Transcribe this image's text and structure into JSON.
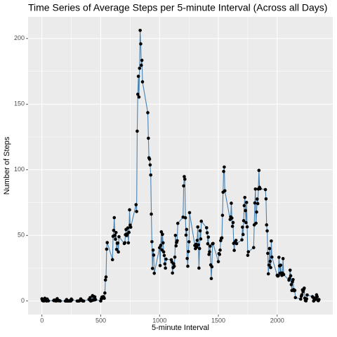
{
  "chart_data": {
    "type": "line",
    "title": "Time Series of Average Steps per 5-minute Interval (Across all Days)",
    "x_label": "5-minute Interval",
    "y_label": "Number of Steps",
    "line_color": "#4682b4",
    "point_color": "#000000",
    "grid": true,
    "xlim": [
      -117.75,
      2472.75
    ],
    "ylim": [
      -10.3,
      216.5
    ],
    "xticks": [
      0,
      500,
      1000,
      1500,
      2000
    ],
    "yticks": [
      0,
      50,
      100,
      150,
      200
    ],
    "x": [
      0,
      5,
      10,
      15,
      20,
      25,
      30,
      35,
      40,
      45,
      50,
      55,
      100,
      105,
      110,
      115,
      120,
      125,
      130,
      135,
      140,
      145,
      150,
      155,
      200,
      205,
      210,
      215,
      220,
      225,
      230,
      235,
      240,
      245,
      250,
      255,
      300,
      305,
      310,
      315,
      320,
      325,
      330,
      335,
      340,
      345,
      350,
      355,
      400,
      405,
      410,
      415,
      420,
      425,
      430,
      435,
      440,
      445,
      450,
      455,
      500,
      505,
      510,
      515,
      520,
      525,
      530,
      535,
      540,
      545,
      550,
      555,
      600,
      605,
      610,
      615,
      620,
      625,
      630,
      635,
      640,
      645,
      650,
      655,
      700,
      705,
      710,
      715,
      720,
      725,
      730,
      735,
      740,
      745,
      750,
      755,
      800,
      805,
      810,
      815,
      820,
      825,
      830,
      835,
      840,
      845,
      850,
      855,
      900,
      905,
      910,
      915,
      920,
      925,
      930,
      935,
      940,
      945,
      950,
      955,
      1000,
      1005,
      1010,
      1015,
      1020,
      1025,
      1030,
      1035,
      1040,
      1045,
      1050,
      1055,
      1100,
      1105,
      1110,
      1115,
      1120,
      1125,
      1130,
      1135,
      1140,
      1145,
      1150,
      1155,
      1200,
      1205,
      1210,
      1215,
      1220,
      1225,
      1230,
      1235,
      1240,
      1245,
      1250,
      1255,
      1300,
      1305,
      1310,
      1315,
      1320,
      1325,
      1330,
      1335,
      1340,
      1345,
      1350,
      1355,
      1400,
      1405,
      1410,
      1415,
      1420,
      1425,
      1430,
      1435,
      1440,
      1445,
      1450,
      1455,
      1500,
      1505,
      1510,
      1515,
      1520,
      1525,
      1530,
      1535,
      1540,
      1545,
      1550,
      1555,
      1600,
      1605,
      1610,
      1615,
      1620,
      1625,
      1630,
      1635,
      1640,
      1645,
      1650,
      1655,
      1700,
      1705,
      1710,
      1715,
      1720,
      1725,
      1730,
      1735,
      1740,
      1745,
      1750,
      1755,
      1800,
      1805,
      1810,
      1815,
      1820,
      1825,
      1830,
      1835,
      1840,
      1845,
      1850,
      1855,
      1900,
      1905,
      1910,
      1915,
      1920,
      1925,
      1930,
      1935,
      1940,
      1945,
      1950,
      1955,
      2000,
      2005,
      2010,
      2015,
      2020,
      2025,
      2030,
      2035,
      2040,
      2045,
      2050,
      2055,
      2100,
      2105,
      2110,
      2115,
      2120,
      2125,
      2130,
      2135,
      2140,
      2145,
      2150,
      2155,
      2200,
      2205,
      2210,
      2215,
      2220,
      2225,
      2230,
      2235,
      2240,
      2245,
      2250,
      2255,
      2300,
      2305,
      2310,
      2315,
      2320,
      2325,
      2330,
      2335,
      2340,
      2345,
      2350,
      2355
    ],
    "values": [
      1.7,
      0.3,
      0.1,
      0.2,
      0.1,
      2.1,
      0.5,
      0.9,
      0,
      1.5,
      0.3,
      0.1,
      0.3,
      0.7,
      0.2,
      0.3,
      0,
      1.1,
      1.8,
      0.2,
      0.2,
      0.4,
      0.3,
      0,
      0,
      0,
      1.1,
      0,
      0,
      0.1,
      0,
      0.2,
      0,
      0,
      1.5,
      0.9,
      0,
      0,
      0,
      0,
      0.2,
      0.6,
      1.6,
      0.6,
      0.5,
      0.1,
      0,
      0,
      1.2,
      0.9,
      2.6,
      0,
      0.3,
      0.4,
      4.1,
      0.7,
      3.5,
      0.8,
      3.1,
      1.1,
      0,
      1.6,
      3,
      2.2,
      3.3,
      3,
      2.1,
      6.1,
      16,
      18.3,
      39.5,
      44.5,
      31.5,
      49.3,
      53.8,
      63.5,
      50,
      47.1,
      52.2,
      39.3,
      44,
      44.2,
      37.4,
      49,
      43.8,
      44.4,
      50.5,
      54.5,
      49.9,
      51,
      55.7,
      44.3,
      52.3,
      69.5,
      57.8,
      56.2,
      73.4,
      68.2,
      129.4,
      157.5,
      171.2,
      155.4,
      177.3,
      206.2,
      195.9,
      179.6,
      183.4,
      167,
      143.5,
      124,
      109.1,
      108.1,
      103.7,
      96,
      66.2,
      45.2,
      24.8,
      38.8,
      35,
      21.1,
      40.6,
      27,
      42.4,
      52.7,
      38.9,
      50.8,
      44.3,
      37.4,
      34.7,
      28.3,
      25.1,
      31.9,
      31.4,
      29.7,
      21.3,
      25.5,
      28.4,
      26.5,
      33.4,
      50,
      42,
      44.6,
      46,
      59.2,
      63.9,
      87.7,
      94.8,
      92.8,
      63.4,
      50.2,
      54.5,
      32.4,
      26.5,
      37.7,
      45.1,
      67.3,
      42.3,
      39.9,
      43.3,
      41,
      46.2,
      56.4,
      42.8,
      25.1,
      40,
      53.5,
      47.3,
      60.8,
      55.8,
      52,
      43.6,
      48.7,
      35.5,
      37.5,
      41.8,
      27.5,
      17.1,
      26.1,
      43.6,
      43.8,
      30,
      36.1,
      35.5,
      38.8,
      46,
      47.8,
      48.1,
      65.3,
      82.9,
      98.7,
      102.1,
      84,
      62.1,
      64.1,
      74.5,
      63.2,
      56.9,
      59.8,
      43.9,
      38.6,
      44.7,
      45.5,
      46.2,
      43.7,
      46.6,
      56.3,
      50.7,
      61.2,
      72.7,
      78.9,
      68.9,
      59.7,
      75.1,
      56.5,
      34.8,
      37.5,
      40.7,
      58,
      74.7,
      85.3,
      59.3,
      67.8,
      77.7,
      74.2,
      85.3,
      99.5,
      86.6,
      85.6,
      84.9,
      77.8,
      58,
      53.4,
      36.3,
      20.7,
      27.4,
      40,
      30.2,
      25.5,
      45.7,
      33.5,
      19.6,
      19,
      19.3,
      33.3,
      26.8,
      21.2,
      27.3,
      21.3,
      19.5,
      21.3,
      32.3,
      20.2,
      15.9,
      17.2,
      23.5,
      19.2,
      12.5,
      8,
      14.7,
      16.3,
      8.7,
      7.8,
      8.1,
      2.6,
      1.5,
      3.7,
      4.8,
      8.5,
      7.1,
      8.7,
      9.8,
      2.2,
      0.3,
      0.1,
      1.6,
      4.6,
      3.3,
      2.8,
      0,
      0.8,
      1,
      1.6,
      2.6,
      4.7,
      3.3,
      0.6,
      0.2,
      1.1
    ]
  }
}
